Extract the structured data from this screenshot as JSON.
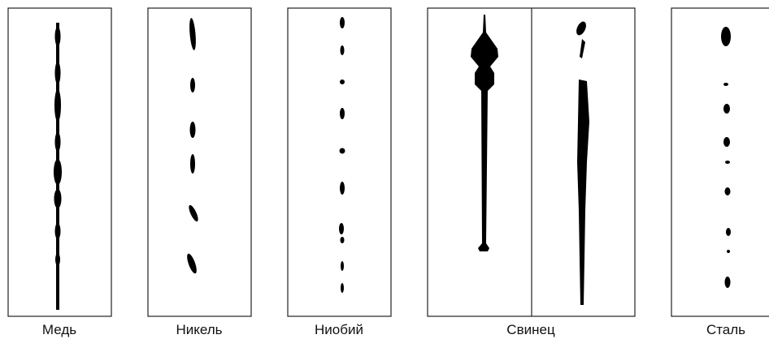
{
  "labels": [
    "Медь",
    "Никель",
    "Ниобий",
    "Свинец",
    "Сталь"
  ]
}
